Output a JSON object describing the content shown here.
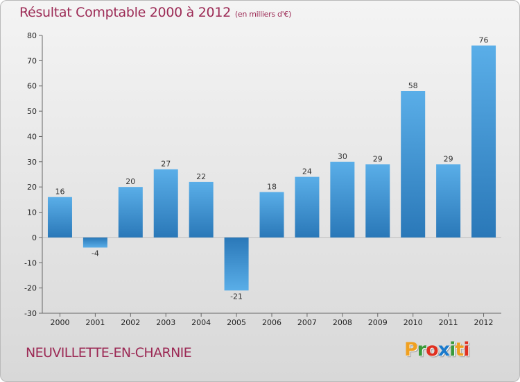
{
  "header": {
    "title": "Résultat Comptable 2000 à 2012",
    "subtitle": "(en milliers d'€)"
  },
  "footer": {
    "commune": "NEUVILLETTE-EN-CHARNIE",
    "logo": "Proxiti",
    "logo_colors": [
      "#f0a020",
      "#3a9a3a",
      "#e03020",
      "#1a7acc",
      "#3a9a3a",
      "#f0a020",
      "#e03020"
    ]
  },
  "colors": {
    "title": "#9c2a55",
    "bar_light": "#5aaee8",
    "bar_dark": "#2a78b8"
  },
  "chart_data": {
    "type": "bar",
    "title": "Résultat Comptable 2000 à 2012",
    "subtitle": "(en milliers d'€)",
    "xlabel": "",
    "ylabel": "",
    "categories": [
      "2000",
      "2001",
      "2002",
      "2003",
      "2004",
      "2005",
      "2006",
      "2007",
      "2008",
      "2009",
      "2010",
      "2011",
      "2012"
    ],
    "values": [
      16,
      -4,
      20,
      27,
      22,
      -21,
      18,
      24,
      30,
      29,
      58,
      29,
      76
    ],
    "ylim": [
      -30,
      80
    ],
    "yticks": [
      -30,
      -20,
      -10,
      0,
      10,
      20,
      30,
      40,
      50,
      60,
      70,
      80
    ],
    "grid": false,
    "legend": "none"
  }
}
